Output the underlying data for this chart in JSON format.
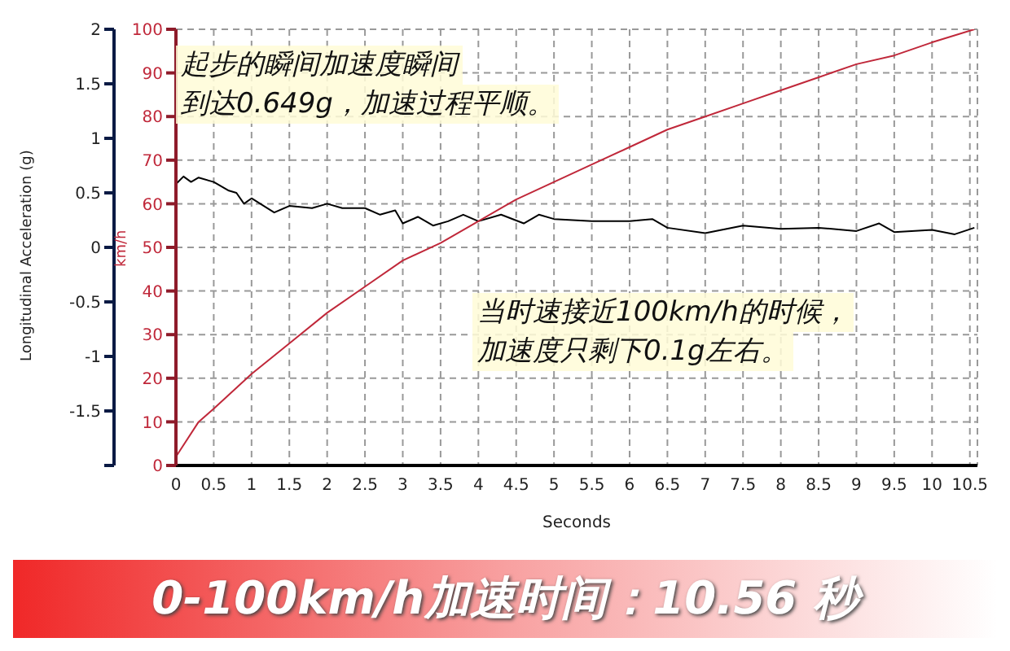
{
  "chart_data": {
    "type": "line",
    "xlabel": "Seconds",
    "ylabel": "Longitudinal Acceleration (g)",
    "y2label": "km/h",
    "xlim": [
      0,
      10.6
    ],
    "xticks": [
      0,
      0.5,
      1,
      1.5,
      2,
      2.5,
      3,
      3.5,
      4,
      4.5,
      5,
      5.5,
      6,
      6.5,
      7,
      7.5,
      8,
      8.5,
      9,
      9.5,
      10,
      10.5
    ],
    "ylim": [
      -2,
      2
    ],
    "yticks": [
      {
        "value": -2,
        "label": null
      },
      -1.5,
      -1,
      -0.5,
      0,
      0.5,
      1,
      1.5,
      2
    ],
    "y2lim": [
      0,
      100
    ],
    "y2ticks": [
      0,
      10,
      20,
      30,
      40,
      50,
      60,
      70,
      80,
      90,
      100
    ],
    "grid": true,
    "marker": "none",
    "line_style": "solid",
    "series": [
      {
        "color": "#000000",
        "x": [
          0,
          0.1,
          0.2,
          0.3,
          0.5,
          0.7,
          0.8,
          0.9,
          1.0,
          1.3,
          1.5,
          1.8,
          2.0,
          2.2,
          2.5,
          2.7,
          2.9,
          3.0,
          3.2,
          3.4,
          3.6,
          3.8,
          4.0,
          4.3,
          4.6,
          4.8,
          5.0,
          5.5,
          6.0,
          6.3,
          6.5,
          7.0,
          7.5,
          8.0,
          8.5,
          9.0,
          9.3,
          9.5,
          10.0,
          10.3,
          10.56
        ],
        "values": [
          0.58,
          0.65,
          0.6,
          0.64,
          0.6,
          0.52,
          0.5,
          0.4,
          0.45,
          0.32,
          0.38,
          0.36,
          0.4,
          0.36,
          0.36,
          0.3,
          0.34,
          0.22,
          0.28,
          0.2,
          0.24,
          0.3,
          0.24,
          0.3,
          0.22,
          0.3,
          0.26,
          0.24,
          0.24,
          0.26,
          0.18,
          0.13,
          0.2,
          0.17,
          0.18,
          0.15,
          0.22,
          0.14,
          0.16,
          0.12,
          0.18
        ]
      },
      {
        "color": "#c0283a",
        "axis": "y2",
        "x": [
          0,
          0.3,
          0.5,
          1,
          1.5,
          2,
          2.5,
          3,
          3.5,
          4,
          4.5,
          5,
          5.5,
          6,
          6.5,
          7,
          7.5,
          8,
          8.5,
          9,
          9.5,
          10,
          10.56
        ],
        "values": [
          2,
          10,
          13,
          21,
          28,
          35,
          41,
          47,
          51,
          56,
          61,
          65,
          69,
          73,
          77,
          80,
          83,
          86,
          89,
          92,
          94,
          97,
          100
        ]
      }
    ],
    "annotations": [
      "起步的瞬间加速度瞬间",
      "到达0.649g，加速过程平顺。",
      "当时速接近100km/h的时候，",
      "加速度只剩下0.1g左右。",
      "0-100km/h加速时间：10.56 秒"
    ]
  }
}
